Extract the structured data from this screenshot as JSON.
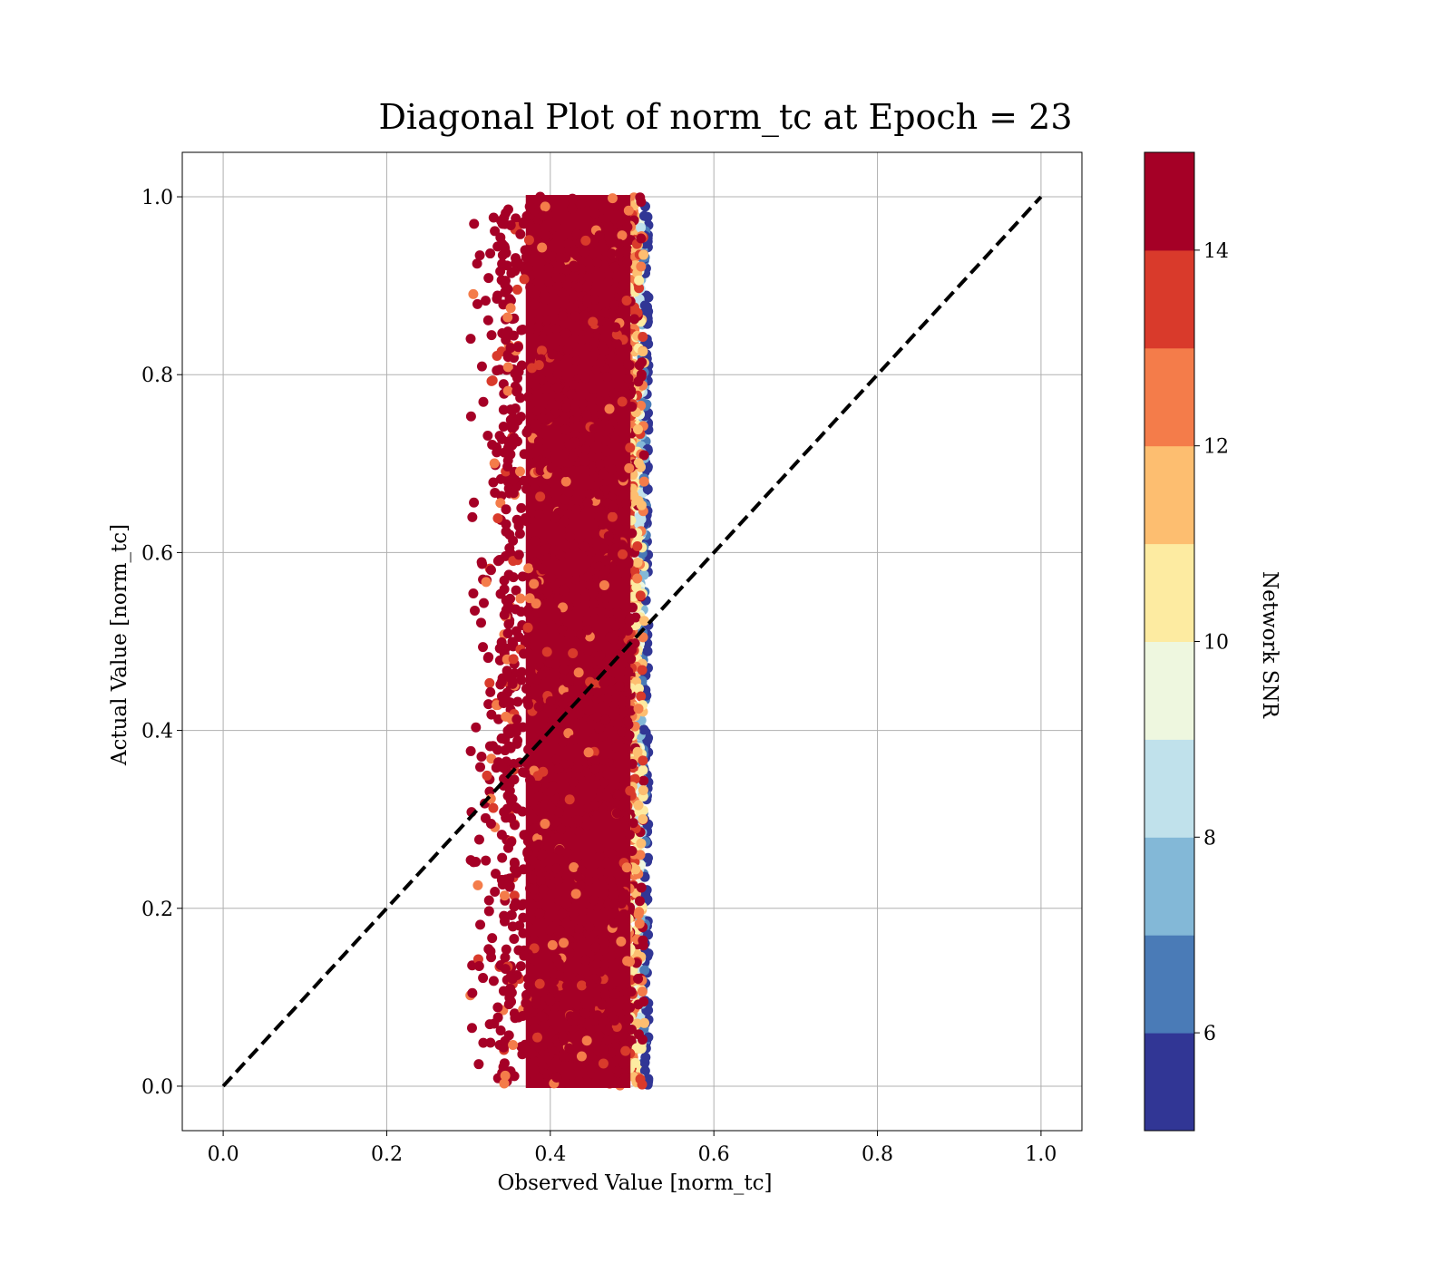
{
  "chart_data": {
    "type": "scatter",
    "title": "Diagonal Plot of norm_tc at Epoch = 23",
    "xlabel": "Observed Value [norm_tc]",
    "ylabel": "Actual Value [norm_tc]",
    "xlim": [
      -0.05,
      1.05
    ],
    "ylim": [
      -0.05,
      1.05
    ],
    "x_ticks": [
      "0.0",
      "0.2",
      "0.4",
      "0.6",
      "0.8",
      "1.0"
    ],
    "y_ticks": [
      "0.0",
      "0.2",
      "0.4",
      "0.6",
      "0.8",
      "1.0"
    ],
    "grid": true,
    "reference_line": {
      "style": "dashed",
      "color": "#000000",
      "from": [
        0.0,
        0.0
      ],
      "to": [
        1.0,
        1.0
      ]
    },
    "point_cloud": {
      "x_range_core": [
        0.36,
        0.51
      ],
      "x_range_outliers": [
        0.3,
        0.36
      ],
      "x_right_edge": 0.52,
      "y_range": [
        0.0,
        1.0
      ],
      "dominant_snr": "above 14"
    },
    "colorbar": {
      "label": "Network SNR",
      "range": [
        5,
        15
      ],
      "ticks": [
        "6",
        "8",
        "10",
        "12",
        "14"
      ],
      "levels": [
        {
          "from": 5,
          "to": 6,
          "color": "#313695"
        },
        {
          "from": 6,
          "to": 7,
          "color": "#4a7bb7"
        },
        {
          "from": 7,
          "to": 8,
          "color": "#83b8d7"
        },
        {
          "from": 8,
          "to": 9,
          "color": "#c0e1eb"
        },
        {
          "from": 9,
          "to": 10,
          "color": "#eef7df"
        },
        {
          "from": 10,
          "to": 11,
          "color": "#fdeba1"
        },
        {
          "from": 11,
          "to": 12,
          "color": "#fdbe70"
        },
        {
          "from": 12,
          "to": 13,
          "color": "#f47c4a"
        },
        {
          "from": 13,
          "to": 14,
          "color": "#d93a2b"
        },
        {
          "from": 14,
          "to": 15,
          "color": "#a50026"
        }
      ]
    }
  }
}
